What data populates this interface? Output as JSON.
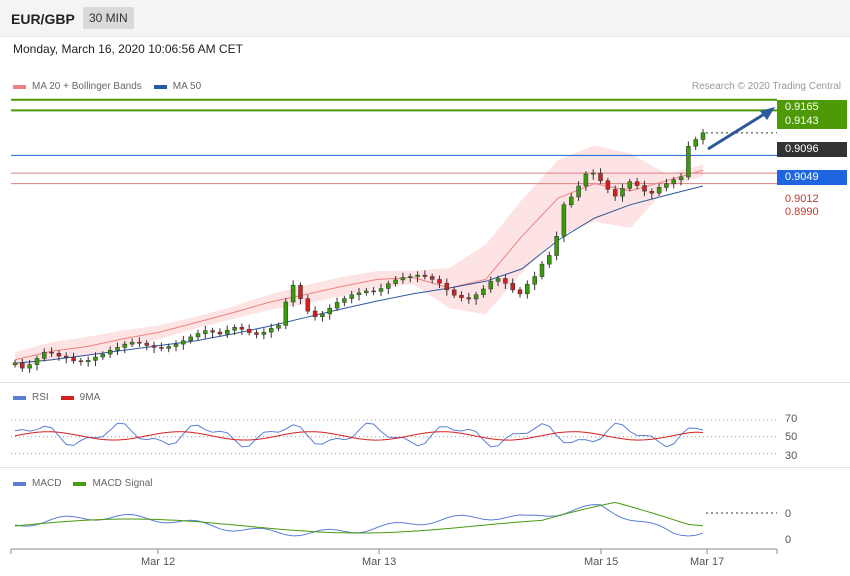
{
  "header": {
    "pair": "EUR/GBP",
    "timeframe": "30 MIN"
  },
  "date": "Monday, March 16, 2020 10:06:56 AM CET",
  "legend_main": {
    "ma20": "MA 20 + Bollinger Bands",
    "ma50": "MA 50",
    "ma20_color": "#f08080",
    "ma50_color": "#2c5aa0"
  },
  "credit": "Research © 2020 Trading Central",
  "legend_rsi": {
    "rsi": "RSI",
    "ma9": "9MA"
  },
  "legend_macd": {
    "macd": "MACD",
    "signal": "MACD Signal"
  },
  "x_labels": [
    "Mar 12",
    "Mar 13",
    "Mar 15",
    "Mar 17"
  ],
  "chart_data": [
    {
      "type": "candlestick",
      "pair": "EUR/GBP",
      "timeframe": "30 MIN",
      "y_range": [
        0.858,
        0.9175
      ],
      "levels": {
        "resistance": [
          0.9165,
          0.9143
        ],
        "pivot": 0.9049,
        "support": [
          0.9012,
          0.899
        ],
        "last": 0.9096
      },
      "level_labels": [
        "0.9165",
        "0.9143",
        "0.9096",
        "0.9049",
        "0.9012",
        "0.8990"
      ],
      "closes": [
        0.8616,
        0.8605,
        0.8612,
        0.8625,
        0.8638,
        0.8636,
        0.863,
        0.8627,
        0.862,
        0.8618,
        0.8621,
        0.8628,
        0.8634,
        0.8642,
        0.8648,
        0.8655,
        0.8659,
        0.8657,
        0.8652,
        0.8648,
        0.8646,
        0.865,
        0.8655,
        0.8662,
        0.867,
        0.8677,
        0.8683,
        0.868,
        0.8676,
        0.8684,
        0.869,
        0.8686,
        0.8679,
        0.8675,
        0.868,
        0.8688,
        0.8694,
        0.8743,
        0.8778,
        0.875,
        0.8724,
        0.8712,
        0.8718,
        0.873,
        0.8742,
        0.875,
        0.8758,
        0.8762,
        0.8766,
        0.8765,
        0.8771,
        0.8781,
        0.8789,
        0.8794,
        0.8796,
        0.8799,
        0.8796,
        0.879,
        0.8782,
        0.8768,
        0.8757,
        0.8752,
        0.8749,
        0.8758,
        0.877,
        0.8786,
        0.8792,
        0.8782,
        0.8768,
        0.876,
        0.878,
        0.8796,
        0.8822,
        0.884,
        0.888,
        0.8946,
        0.8962,
        0.8985,
        0.901,
        0.9012,
        0.8996,
        0.8978,
        0.8964,
        0.898,
        0.8994,
        0.8986,
        0.8974,
        0.897,
        0.8982,
        0.899,
        0.8998,
        0.9004,
        0.9068,
        0.9082,
        0.9096
      ],
      "ma20_points": [
        0.8622,
        0.864,
        0.865,
        0.8666,
        0.868,
        0.87,
        0.872,
        0.8742,
        0.8758,
        0.8775,
        0.879,
        0.8794,
        0.8772,
        0.879,
        0.888,
        0.896,
        0.899,
        0.8975,
        0.8996,
        0.9018
      ],
      "ma50_points": [
        0.8615,
        0.8622,
        0.8632,
        0.8642,
        0.8652,
        0.8662,
        0.8676,
        0.8692,
        0.871,
        0.8728,
        0.8745,
        0.876,
        0.8772,
        0.8786,
        0.8812,
        0.8872,
        0.8918,
        0.8946,
        0.8966,
        0.8985
      ],
      "rsi": {
        "levels": [
          70,
          50,
          30
        ],
        "level_labels": [
          "70",
          "50",
          "30"
        ],
        "rsi_last": 58,
        "ma9_last": 55
      },
      "macd": {
        "zero_labels": [
          "0",
          "0"
        ]
      }
    }
  ]
}
